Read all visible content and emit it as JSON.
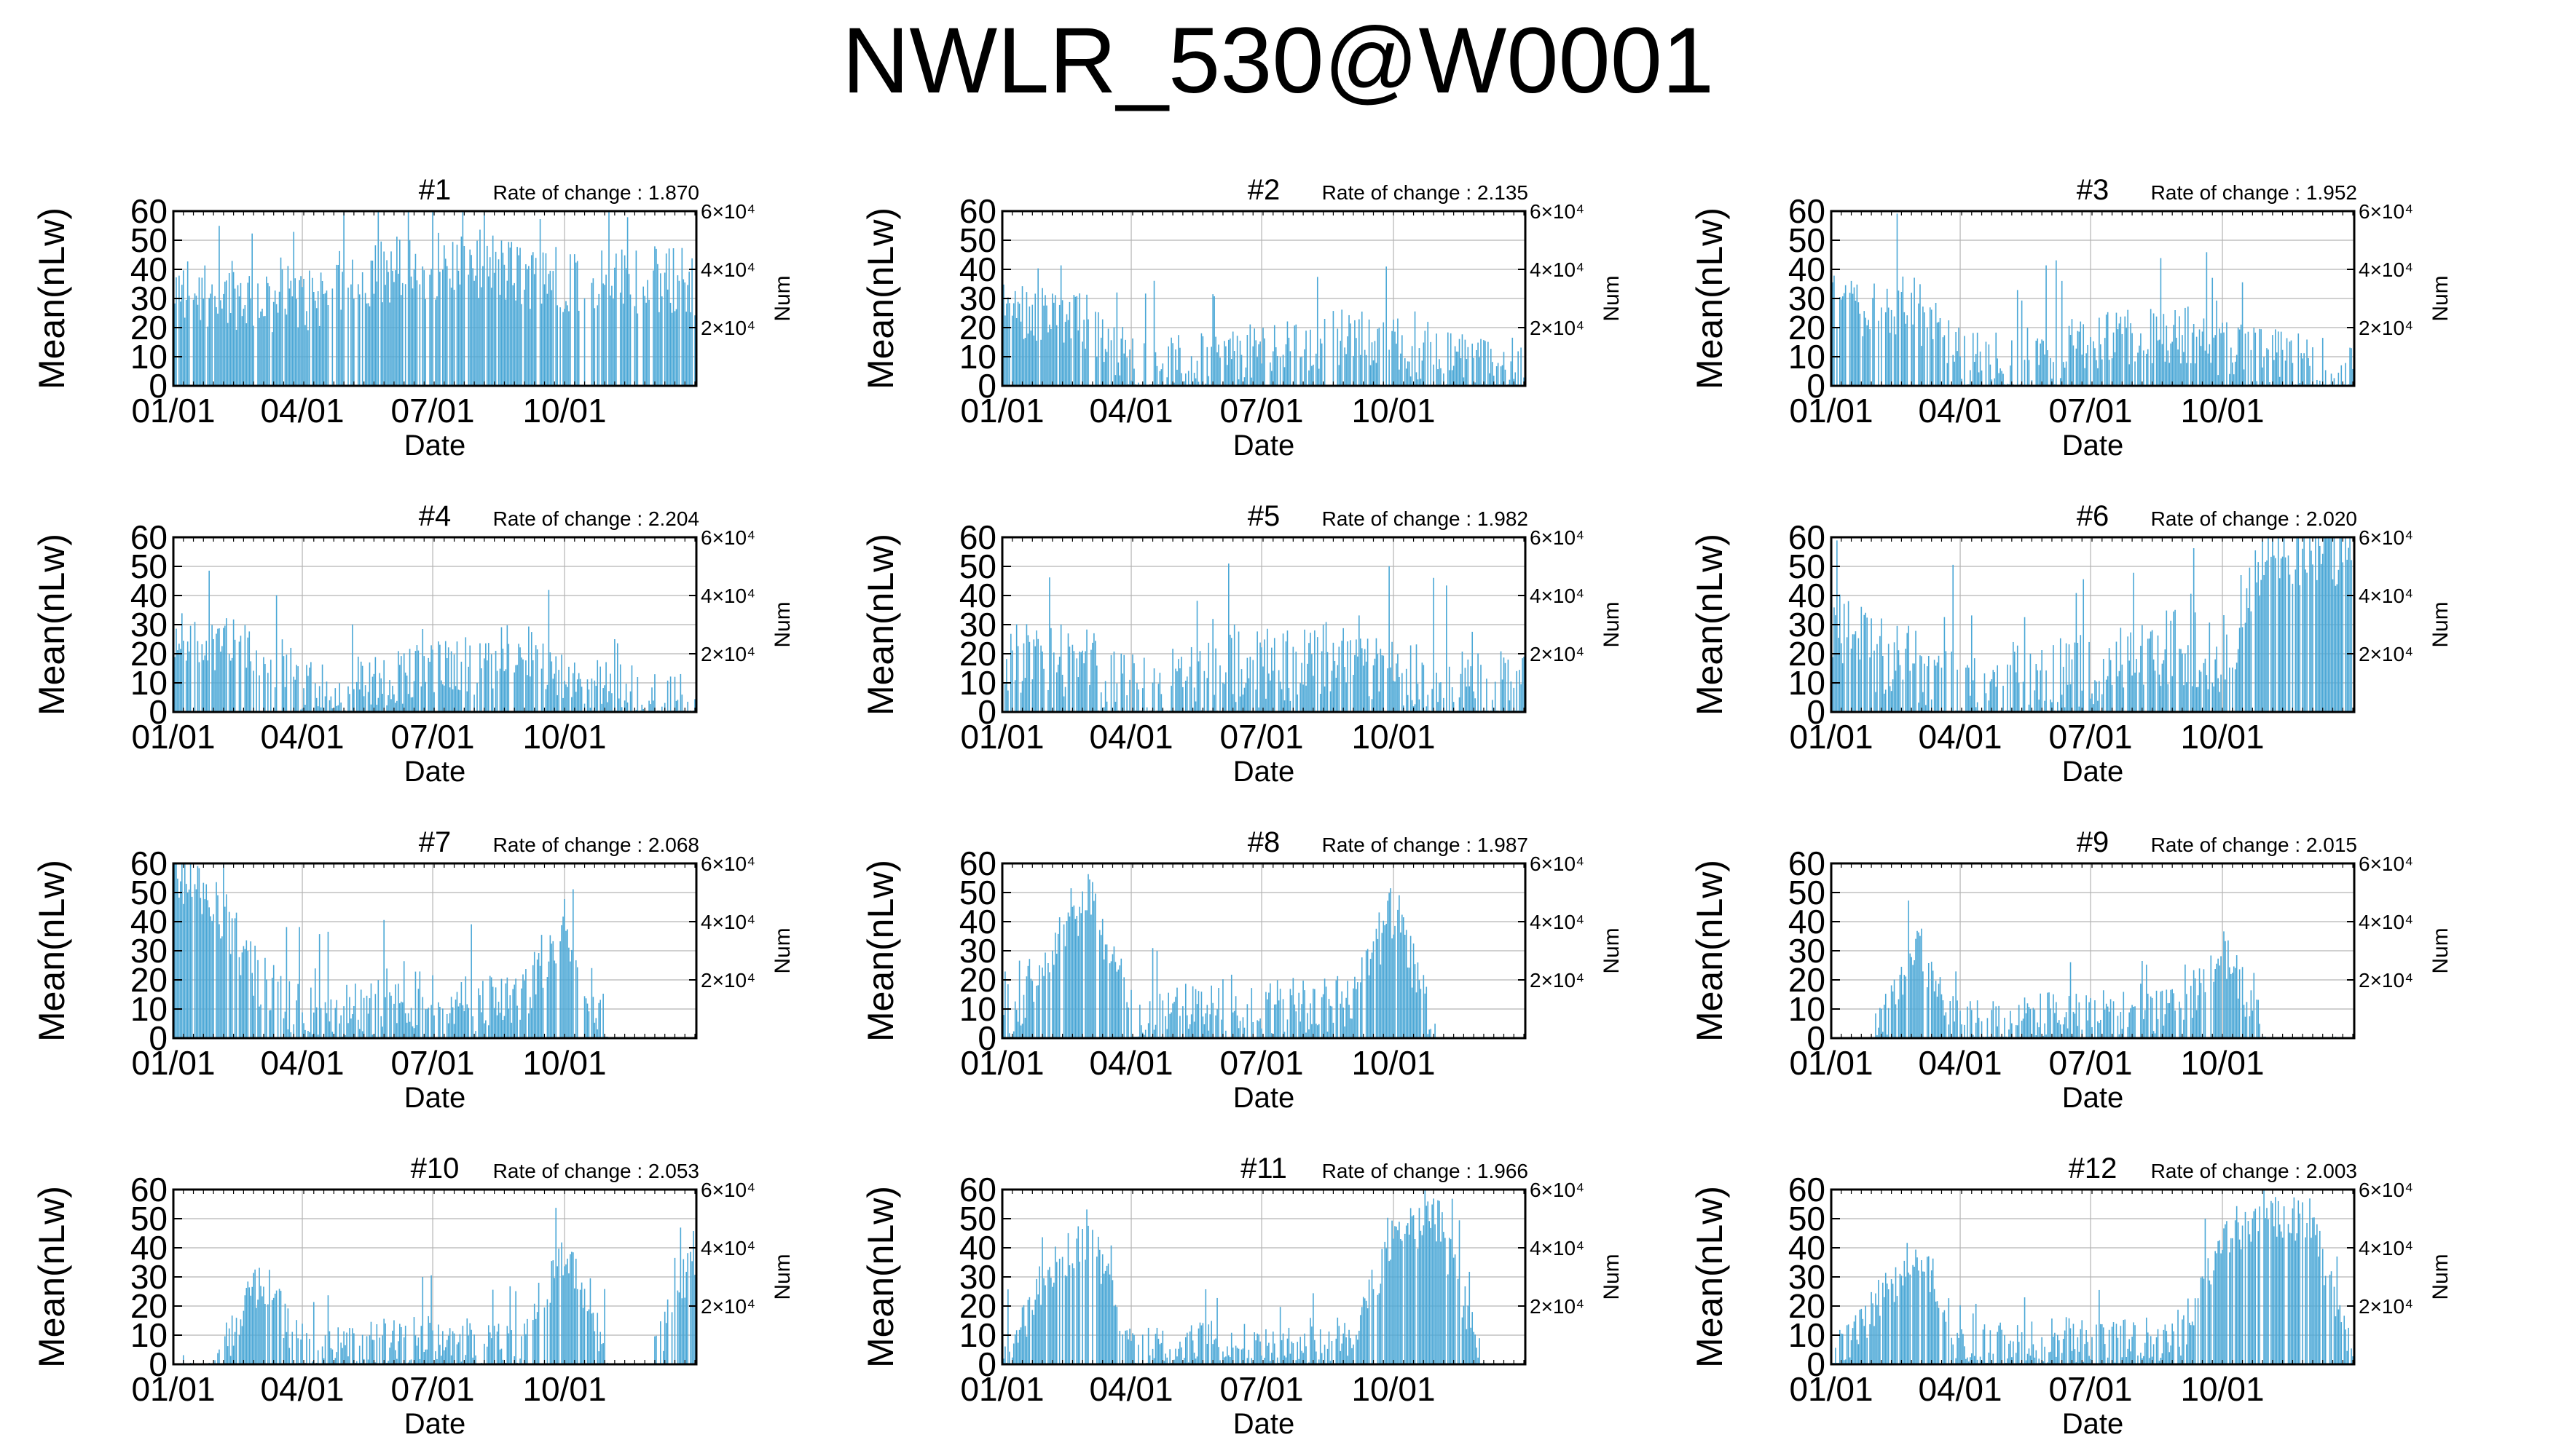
{
  "figure": {
    "title": "NWLR_530@W0001",
    "xlabel": "Date",
    "ylabel": "Mean(nLw)",
    "y2label": "Num",
    "rate_prefix": "Rate of change : "
  },
  "colors": {
    "series": "#4aa7d6",
    "axis": "#000000",
    "grid": "#b4b4b4"
  },
  "chart_data": [
    {
      "type": "line",
      "title": "#1",
      "rate_of_change": "1.870",
      "x_ticks": [
        "01/01",
        "04/01",
        "07/01",
        "10/01"
      ],
      "xlim_days": [
        0,
        365
      ],
      "ylim": [
        0,
        60
      ],
      "y_ticks": [
        0,
        10,
        20,
        30,
        40,
        50,
        60
      ],
      "y2_ticks": [
        "2×10⁴",
        "4×10⁴",
        "6×10⁴"
      ],
      "y2lim": [
        0,
        60000
      ],
      "series": [
        {
          "x_month_points": [
            0,
            1,
            2,
            3,
            4,
            5,
            6,
            7,
            8,
            9,
            10,
            11,
            12
          ],
          "y_base": [
            33,
            32,
            30,
            29,
            36,
            40,
            41,
            42,
            38,
            37,
            37,
            36,
            36
          ],
          "y_variation": 12,
          "y_clip": 60
        }
      ]
    },
    {
      "type": "line",
      "title": "#2",
      "rate_of_change": "2.135",
      "x_ticks": [
        "01/01",
        "04/01",
        "07/01",
        "10/01"
      ],
      "xlim_days": [
        0,
        365
      ],
      "ylim": [
        0,
        60
      ],
      "y_ticks": [
        0,
        10,
        20,
        30,
        40,
        50,
        60
      ],
      "y2_ticks": [
        "2×10⁴",
        "4×10⁴",
        "6×10⁴"
      ],
      "y2lim": [
        0,
        60000
      ],
      "series": [
        {
          "x_month_points": [
            0,
            1,
            2,
            3,
            4,
            5,
            6,
            7,
            8,
            9,
            10,
            11,
            12
          ],
          "y_base": [
            28,
            24,
            22,
            8,
            8,
            10,
            12,
            14,
            18,
            14,
            10,
            8,
            6
          ],
          "y_variation": 10,
          "y_clip": 60
        }
      ]
    },
    {
      "type": "line",
      "title": "#3",
      "rate_of_change": "1.952",
      "x_ticks": [
        "01/01",
        "04/01",
        "07/01",
        "10/01"
      ],
      "xlim_days": [
        0,
        365
      ],
      "ylim": [
        0,
        60
      ],
      "y_ticks": [
        0,
        10,
        20,
        30,
        40,
        50,
        60
      ],
      "y2_ticks": [
        "2×10⁴",
        "4×10⁴",
        "6×10⁴"
      ],
      "y2lim": [
        0,
        60000
      ],
      "series": [
        {
          "x_month_points": [
            0,
            1,
            2,
            3,
            4,
            5,
            6,
            7,
            8,
            9,
            10,
            11,
            12
          ],
          "y_base": [
            27,
            28,
            26,
            8,
            9,
            11,
            14,
            16,
            18,
            12,
            9,
            7,
            6
          ],
          "y_variation": 11,
          "y_clip": 60
        }
      ]
    },
    {
      "type": "line",
      "title": "#4",
      "rate_of_change": "2.204",
      "x_ticks": [
        "01/01",
        "04/01",
        "07/01",
        "10/01"
      ],
      "xlim_days": [
        0,
        365
      ],
      "ylim": [
        0,
        60
      ],
      "y_ticks": [
        0,
        10,
        20,
        30,
        40,
        50,
        60
      ],
      "y2_ticks": [
        "2×10⁴",
        "4×10⁴",
        "6×10⁴"
      ],
      "y2lim": [
        0,
        60000
      ],
      "series": [
        {
          "x_month_points": [
            0,
            1,
            2,
            3,
            4,
            5,
            6,
            7,
            8,
            9,
            10,
            11,
            12
          ],
          "y_base": [
            24,
            24,
            22,
            8,
            9,
            12,
            15,
            16,
            22,
            10,
            8,
            6,
            6
          ],
          "y_variation": 10,
          "y_clip": 60
        }
      ]
    },
    {
      "type": "line",
      "title": "#5",
      "rate_of_change": "1.982",
      "x_ticks": [
        "01/01",
        "04/01",
        "07/01",
        "10/01"
      ],
      "xlim_days": [
        0,
        365
      ],
      "ylim": [
        0,
        60
      ],
      "y_ticks": [
        0,
        10,
        20,
        30,
        40,
        50,
        60
      ],
      "y2_ticks": [
        "2×10⁴",
        "4×10⁴",
        "6×10⁴"
      ],
      "y2lim": [
        0,
        60000
      ],
      "series": [
        {
          "x_month_points": [
            0,
            1,
            2,
            3,
            4,
            5,
            6,
            7,
            8,
            9,
            10,
            11,
            12
          ],
          "y_base": [
            18,
            20,
            16,
            8,
            9,
            12,
            16,
            18,
            22,
            14,
            10,
            8,
            8
          ],
          "y_variation": 14,
          "y_clip": 60
        }
      ]
    },
    {
      "type": "line",
      "title": "#6",
      "rate_of_change": "2.020",
      "x_ticks": [
        "01/01",
        "04/01",
        "07/01",
        "10/01"
      ],
      "xlim_days": [
        0,
        365
      ],
      "ylim": [
        0,
        60
      ],
      "y_ticks": [
        0,
        10,
        20,
        30,
        40,
        50,
        60
      ],
      "y2_ticks": [
        "2×10⁴",
        "4×10⁴",
        "6×10⁴"
      ],
      "y2lim": [
        0,
        60000
      ],
      "series": [
        {
          "x_month_points": [
            0,
            1,
            2,
            3,
            4,
            5,
            6,
            7,
            8,
            9,
            10,
            11,
            12
          ],
          "y_base": [
            30,
            20,
            14,
            8,
            9,
            12,
            16,
            20,
            22,
            20,
            50,
            55,
            55
          ],
          "y_variation": 14,
          "y_clip": 60
        }
      ]
    },
    {
      "type": "line",
      "title": "#7",
      "rate_of_change": "2.068",
      "x_ticks": [
        "01/01",
        "04/01",
        "07/01",
        "10/01"
      ],
      "xlim_days": [
        0,
        365
      ],
      "ylim": [
        0,
        60
      ],
      "y_ticks": [
        0,
        10,
        20,
        30,
        40,
        50,
        60
      ],
      "y2_ticks": [
        "2×10⁴",
        "4×10⁴",
        "6×10⁴"
      ],
      "y2lim": [
        0,
        60000
      ],
      "series": [
        {
          "x_month_points": [
            0,
            1,
            2,
            3,
            4,
            5,
            6,
            7,
            8,
            9,
            10,
            11,
            12
          ],
          "y_base": [
            55,
            45,
            20,
            8,
            9,
            12,
            14,
            12,
            14,
            40,
            0,
            0,
            0
          ],
          "y_variation": 10,
          "y_clip": 60
        }
      ]
    },
    {
      "type": "line",
      "title": "#8",
      "rate_of_change": "1.987",
      "x_ticks": [
        "01/01",
        "04/01",
        "07/01",
        "10/01"
      ],
      "xlim_days": [
        0,
        365
      ],
      "ylim": [
        0,
        60
      ],
      "y_ticks": [
        0,
        10,
        20,
        30,
        40,
        50,
        60
      ],
      "y2_ticks": [
        "2×10⁴",
        "4×10⁴",
        "6×10⁴"
      ],
      "y2lim": [
        0,
        60000
      ],
      "series": [
        {
          "x_month_points": [
            0,
            1,
            2,
            3,
            4,
            5,
            6,
            7,
            8,
            9,
            10,
            11,
            12
          ],
          "y_base": [
            0,
            30,
            50,
            6,
            8,
            12,
            12,
            10,
            14,
            45,
            0,
            0,
            0
          ],
          "y_variation": 10,
          "y_clip": 60
        }
      ]
    },
    {
      "type": "line",
      "title": "#9",
      "rate_of_change": "2.015",
      "x_ticks": [
        "01/01",
        "04/01",
        "07/01",
        "10/01"
      ],
      "xlim_days": [
        0,
        365
      ],
      "ylim": [
        0,
        60
      ],
      "y_ticks": [
        0,
        10,
        20,
        30,
        40,
        50,
        60
      ],
      "y2_ticks": [
        "2×10⁴",
        "4×10⁴",
        "6×10⁴"
      ],
      "y2lim": [
        0,
        60000
      ],
      "series": [
        {
          "x_month_points": [
            0,
            1,
            2,
            3,
            4,
            5,
            6,
            7,
            8,
            9,
            10,
            11,
            12
          ],
          "y_base": [
            0,
            0,
            30,
            5,
            6,
            8,
            9,
            8,
            9,
            30,
            0,
            0,
            0
          ],
          "y_variation": 8,
          "y_clip": 60
        }
      ]
    },
    {
      "type": "line",
      "title": "#10",
      "rate_of_change": "2.053",
      "x_ticks": [
        "01/01",
        "04/01",
        "07/01",
        "10/01"
      ],
      "xlim_days": [
        0,
        365
      ],
      "ylim": [
        0,
        60
      ],
      "y_ticks": [
        0,
        10,
        20,
        30,
        40,
        50,
        60
      ],
      "y2_ticks": [
        "2×10⁴",
        "4×10⁴",
        "6×10⁴"
      ],
      "y2lim": [
        0,
        60000
      ],
      "series": [
        {
          "x_month_points": [
            0,
            1,
            2,
            3,
            4,
            5,
            6,
            7,
            8,
            9,
            10,
            11,
            12
          ],
          "y_base": [
            0,
            0,
            30,
            5,
            6,
            8,
            9,
            8,
            8,
            40,
            0,
            0,
            40
          ],
          "y_variation": 8,
          "y_clip": 60
        }
      ]
    },
    {
      "type": "line",
      "title": "#11",
      "rate_of_change": "1.966",
      "x_ticks": [
        "01/01",
        "04/01",
        "07/01",
        "10/01"
      ],
      "xlim_days": [
        0,
        365
      ],
      "ylim": [
        0,
        60
      ],
      "y_ticks": [
        0,
        10,
        20,
        30,
        40,
        50,
        60
      ],
      "y2_ticks": [
        "2×10⁴",
        "4×10⁴",
        "6×10⁴"
      ],
      "y2lim": [
        0,
        60000
      ],
      "series": [
        {
          "x_month_points": [
            0,
            1,
            2,
            3,
            4,
            5,
            6,
            7,
            8,
            9,
            10,
            11,
            12
          ],
          "y_base": [
            0,
            30,
            45,
            5,
            6,
            8,
            8,
            8,
            9,
            45,
            50,
            0,
            0
          ],
          "y_variation": 8,
          "y_clip": 60
        }
      ]
    },
    {
      "type": "line",
      "title": "#12",
      "rate_of_change": "2.003",
      "x_ticks": [
        "01/01",
        "04/01",
        "07/01",
        "10/01"
      ],
      "xlim_days": [
        0,
        365
      ],
      "ylim": [
        0,
        60
      ],
      "y_ticks": [
        0,
        10,
        20,
        30,
        40,
        50,
        60
      ],
      "y2_ticks": [
        "2×10⁴",
        "4×10⁴",
        "6×10⁴"
      ],
      "y2lim": [
        0,
        60000
      ],
      "series": [
        {
          "x_month_points": [
            0,
            1,
            2,
            3,
            4,
            5,
            6,
            7,
            8,
            9,
            10,
            11,
            12
          ],
          "y_base": [
            0,
            20,
            40,
            5,
            6,
            8,
            9,
            8,
            9,
            45,
            50,
            50,
            0
          ],
          "y_variation": 8,
          "y_clip": 60
        }
      ]
    }
  ]
}
